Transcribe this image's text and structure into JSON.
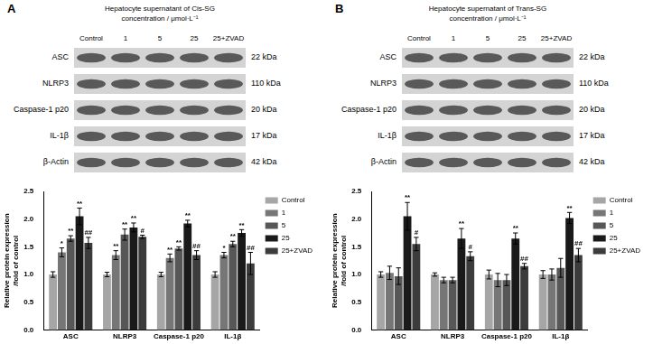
{
  "figure": {
    "panels": [
      {
        "letter": "A",
        "header": [
          "Hepatocyte supernatant of Cis-SG",
          "concentration / μmol·L⁻¹"
        ],
        "lanes": [
          "Control",
          "1",
          "5",
          "25",
          "25+ZVAD"
        ],
        "proteins": [
          {
            "name": "ASC",
            "size": "22 kDa"
          },
          {
            "name": "NLRP3",
            "size": "110 kDa"
          },
          {
            "name": "Caspase-1 p20",
            "size": "20 kDa"
          },
          {
            "name": "IL-1β",
            "size": "17 kDa"
          },
          {
            "name": "β-Actin",
            "size": "42 kDa"
          }
        ]
      },
      {
        "letter": "B",
        "header": [
          "Hepatocyte supernatant of Trans-SG",
          "concentration / μmol·L⁻¹"
        ],
        "lanes": [
          "Control",
          "1",
          "5",
          "25",
          "25+ZVAD"
        ],
        "proteins": [
          {
            "name": "ASC",
            "size": "22 kDa"
          },
          {
            "name": "NLRP3",
            "size": "110 kDa"
          },
          {
            "name": "Caspase-1 p20",
            "size": "20 kDa"
          },
          {
            "name": "IL-1β",
            "size": "17 kDa"
          },
          {
            "name": "β-Actin",
            "size": "42 kDa"
          }
        ]
      }
    ]
  },
  "chart_data": [
    {
      "type": "bar",
      "y_label": [
        "Relative protein expression",
        "/fold of control"
      ],
      "categories": [
        "ASC",
        "NLRP3",
        "Caspase-1 p20",
        "IL-1β"
      ],
      "series": [
        {
          "name": "Control",
          "color": "#a6a6a6",
          "values": [
            1.0,
            1.0,
            1.0,
            1.0
          ],
          "errors": [
            0.05,
            0.04,
            0.04,
            0.05
          ],
          "annotations": [
            null,
            null,
            null,
            null
          ]
        },
        {
          "name": "1",
          "color": "#767676",
          "values": [
            1.4,
            1.35,
            1.3,
            1.35
          ],
          "errors": [
            0.08,
            0.08,
            0.07,
            0.05
          ],
          "annotations": [
            "*",
            "**",
            "**",
            "*"
          ]
        },
        {
          "name": "5",
          "color": "#575757",
          "values": [
            1.65,
            1.72,
            1.47,
            1.55
          ],
          "errors": [
            0.05,
            0.1,
            0.03,
            0.05
          ],
          "annotations": [
            "**",
            "**",
            "**",
            "**"
          ]
        },
        {
          "name": "25",
          "color": "#1a1a1a",
          "values": [
            2.05,
            1.85,
            1.92,
            1.75
          ],
          "errors": [
            0.15,
            0.08,
            0.06,
            0.06
          ],
          "annotations": [
            "**",
            "**",
            "**",
            "**"
          ]
        },
        {
          "name": "25+ZVAD",
          "color": "#3c3c3c",
          "values": [
            1.57,
            1.68,
            1.35,
            1.2
          ],
          "errors": [
            0.1,
            0.03,
            0.08,
            0.2
          ],
          "annotations": [
            "##",
            "#",
            "##",
            "##"
          ]
        }
      ],
      "ylim": [
        0,
        2.5
      ],
      "yticks": [
        {
          "value": 0,
          "label": "0.0"
        },
        {
          "value": 0.5,
          "label": "0.5"
        },
        {
          "value": 1,
          "label": "1.0"
        },
        {
          "value": 1.5,
          "label": "1.5"
        },
        {
          "value": 2,
          "label": "2.0"
        },
        {
          "value": 2.5,
          "label": "2.5"
        }
      ],
      "grid": false,
      "legend": "right"
    },
    {
      "type": "bar",
      "y_label": [
        "Relative protein expression",
        "/fold of control"
      ],
      "categories": [
        "ASC",
        "NLRP3",
        "Caspase-1 p20",
        "IL-1β"
      ],
      "series": [
        {
          "name": "Control",
          "color": "#a6a6a6",
          "values": [
            1.0,
            1.0,
            1.0,
            1.0
          ],
          "errors": [
            0.05,
            0.03,
            0.08,
            0.07
          ],
          "annotations": [
            null,
            null,
            null,
            null
          ]
        },
        {
          "name": "1",
          "color": "#767676",
          "values": [
            1.03,
            0.9,
            0.9,
            1.0
          ],
          "errors": [
            0.12,
            0.05,
            0.12,
            0.1
          ],
          "annotations": [
            null,
            null,
            null,
            null
          ]
        },
        {
          "name": "5",
          "color": "#575757",
          "values": [
            0.97,
            0.9,
            0.9,
            1.12
          ],
          "errors": [
            0.15,
            0.05,
            0.1,
            0.17
          ],
          "annotations": [
            null,
            null,
            null,
            null
          ]
        },
        {
          "name": "25",
          "color": "#1a1a1a",
          "values": [
            2.05,
            1.65,
            1.65,
            2.02
          ],
          "errors": [
            0.25,
            0.18,
            0.1,
            0.1
          ],
          "annotations": [
            "**",
            "**",
            "**",
            "**"
          ]
        },
        {
          "name": "25+ZVAD",
          "color": "#3c3c3c",
          "values": [
            1.55,
            1.33,
            1.15,
            1.35
          ],
          "errors": [
            0.12,
            0.08,
            0.05,
            0.12
          ],
          "annotations": [
            "#",
            "#",
            "##",
            "##"
          ]
        }
      ],
      "ylim": [
        0,
        2.5
      ],
      "yticks": [
        {
          "value": 0,
          "label": "0.0"
        },
        {
          "value": 0.5,
          "label": "0.5"
        },
        {
          "value": 1,
          "label": "1.0"
        },
        {
          "value": 1.5,
          "label": "1.5"
        },
        {
          "value": 2,
          "label": "2.0"
        },
        {
          "value": 2.5,
          "label": "2.5"
        }
      ],
      "grid": false,
      "legend": "right"
    }
  ]
}
